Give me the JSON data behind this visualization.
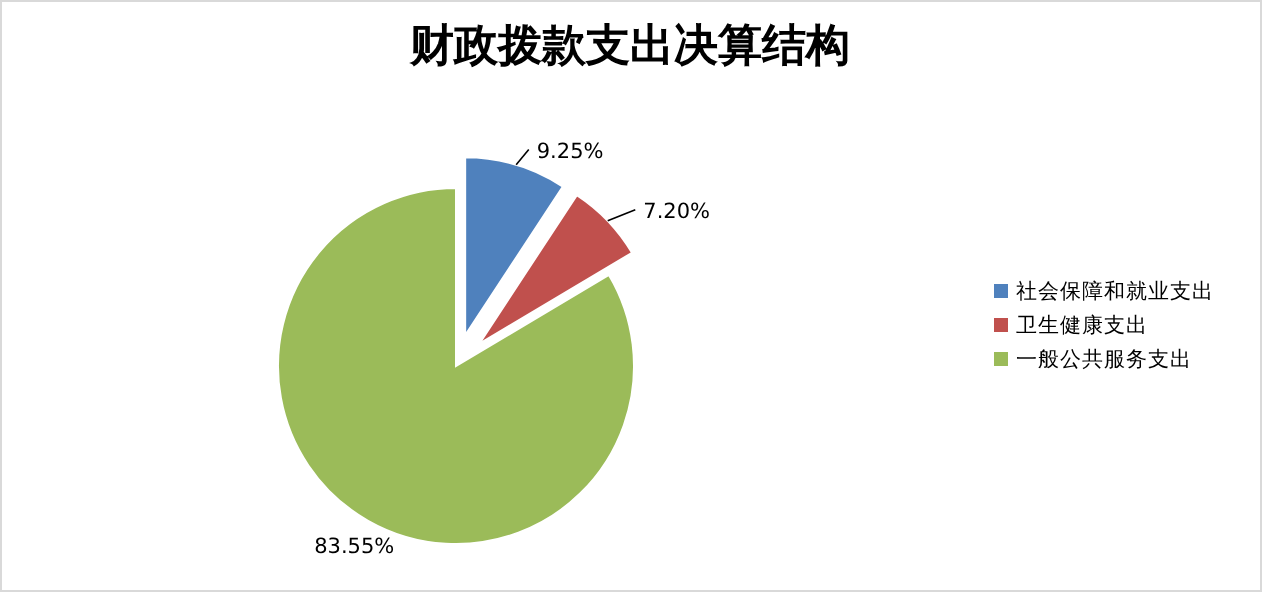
{
  "chart_data": {
    "type": "pie",
    "title": "财政拨款支出决算结构",
    "categories": [
      "社会保障和就业支出",
      "卫生健康支出",
      "一般公共服务支出"
    ],
    "values": [
      9.25,
      7.2,
      83.55
    ],
    "colors": [
      "#4f81bd",
      "#c0504d",
      "#9bbb59"
    ],
    "value_labels": [
      "9.25%",
      "7.20%",
      "83.55%"
    ],
    "legend": "right"
  }
}
